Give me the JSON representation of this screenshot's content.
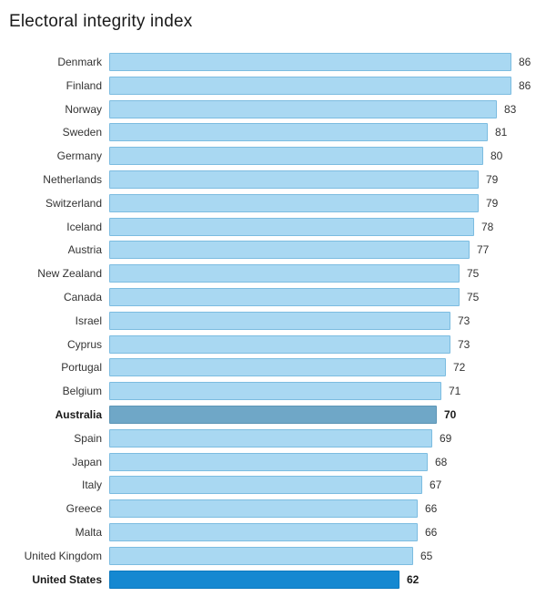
{
  "title": "Electoral integrity index",
  "chart_data": {
    "type": "bar",
    "orientation": "horizontal",
    "title": "Electoral integrity index",
    "xlabel": "",
    "ylabel": "",
    "xlim": [
      0,
      86
    ],
    "grid": false,
    "legend": false,
    "value_labels_shown": true,
    "categories": [
      "Denmark",
      "Finland",
      "Norway",
      "Sweden",
      "Germany",
      "Netherlands",
      "Switzerland",
      "Iceland",
      "Austria",
      "New Zealand",
      "Canada",
      "Israel",
      "Cyprus",
      "Portugal",
      "Belgium",
      "Australia",
      "Spain",
      "Japan",
      "Italy",
      "Greece",
      "Malta",
      "United Kingdom",
      "United States"
    ],
    "values": [
      86,
      86,
      83,
      81,
      80,
      79,
      79,
      78,
      77,
      75,
      75,
      73,
      73,
      72,
      71,
      70,
      69,
      68,
      67,
      66,
      66,
      65,
      62
    ],
    "highlighted_categories": [
      "Australia",
      "United States"
    ]
  },
  "styles": {
    "background": "#ffffff",
    "title_color": "#1a1a1a",
    "label_color": "#333333",
    "highlight_label_color": "#1a1a1a",
    "bar_fill": "#a9d8f2",
    "bar_border": "#7cbce0",
    "highlights": {
      "Australia": {
        "fill": "#6fa7c7",
        "border": "#5e96b6"
      },
      "United States": {
        "fill": "#1588d1",
        "border": "#0c79bf"
      }
    }
  }
}
